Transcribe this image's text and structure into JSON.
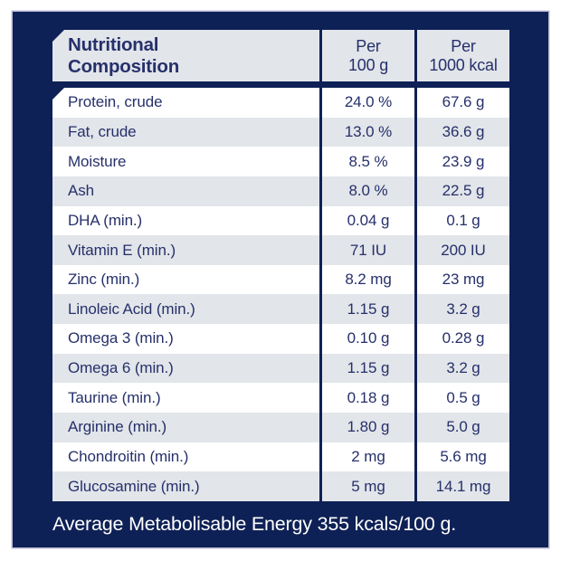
{
  "colors": {
    "navy": "#0E2156",
    "cell_gray": "#E2E5E9",
    "ink": "#26306B",
    "edge": "#B6BAD2"
  },
  "table": {
    "header": {
      "title_line1": "Nutritional",
      "title_line2": "Composition",
      "col_100g": {
        "line1": "Per",
        "line2": "100 g"
      },
      "col_1000kcal": {
        "line1": "Per",
        "line2": "1000 kcal"
      }
    },
    "rows": [
      {
        "label": "Protein, crude",
        "per_100g": "24.0 %",
        "per_1000kcal": "67.6 g"
      },
      {
        "label": "Fat, crude",
        "per_100g": "13.0 %",
        "per_1000kcal": "36.6 g"
      },
      {
        "label": "Moisture",
        "per_100g": "8.5 %",
        "per_1000kcal": "23.9 g"
      },
      {
        "label": "Ash",
        "per_100g": "8.0 %",
        "per_1000kcal": "22.5 g"
      },
      {
        "label": "DHA (min.)",
        "per_100g": "0.04 g",
        "per_1000kcal": "0.1 g"
      },
      {
        "label": "Vitamin E (min.)",
        "per_100g": "71 IU",
        "per_1000kcal": "200 IU"
      },
      {
        "label": "Zinc (min.)",
        "per_100g": "8.2 mg",
        "per_1000kcal": "23 mg"
      },
      {
        "label": "Linoleic Acid (min.)",
        "per_100g": "1.15 g",
        "per_1000kcal": "3.2 g"
      },
      {
        "label": "Omega 3 (min.)",
        "per_100g": "0.10 g",
        "per_1000kcal": "0.28 g"
      },
      {
        "label": "Omega 6 (min.)",
        "per_100g": "1.15 g",
        "per_1000kcal": "3.2 g"
      },
      {
        "label": "Taurine (min.)",
        "per_100g": "0.18 g",
        "per_1000kcal": "0.5 g"
      },
      {
        "label": "Arginine (min.)",
        "per_100g": "1.80 g",
        "per_1000kcal": "5.0 g"
      },
      {
        "label": "Chondroitin (min.)",
        "per_100g": "2 mg",
        "per_1000kcal": "5.6 mg"
      },
      {
        "label": "Glucosamine (min.)",
        "per_100g": "5 mg",
        "per_1000kcal": "14.1 mg"
      }
    ]
  },
  "footer": {
    "energy_text": "Average Metabolisable Energy 355 kcals/100 g."
  }
}
